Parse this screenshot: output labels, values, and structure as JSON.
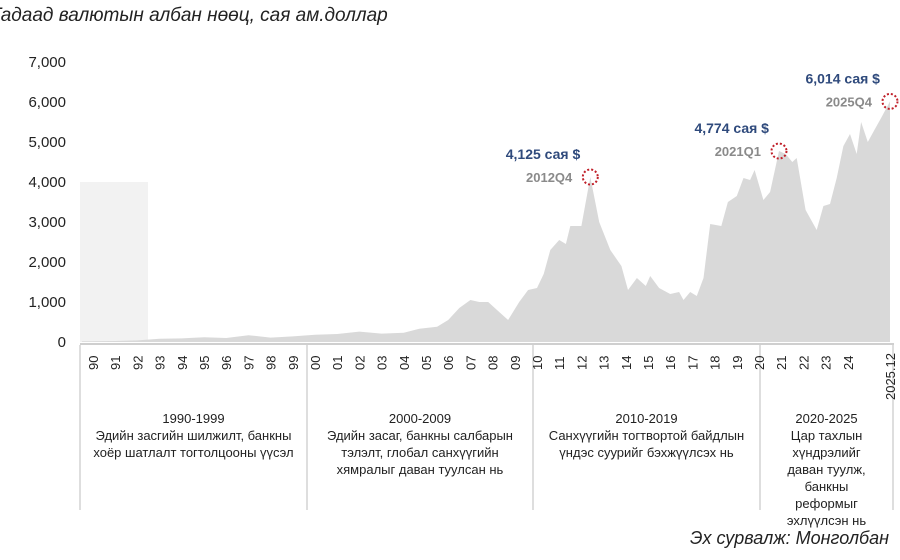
{
  "chart_data": {
    "type": "area",
    "title": "Гадаад валютын албан нөөц, сая ам.доллар",
    "source": "Эх сурвалж: Монголбан",
    "ylim": [
      0,
      7000
    ],
    "y_ticks": [
      "0",
      "1,000",
      "2,000",
      "3,000",
      "4,000",
      "5,000",
      "6,000",
      "7,000"
    ],
    "y_tick_values": [
      0,
      1000,
      2000,
      3000,
      4000,
      5000,
      6000,
      7000
    ],
    "x_ticks": [
      "90",
      "91",
      "92",
      "93",
      "94",
      "95",
      "96",
      "97",
      "98",
      "99",
      "00",
      "01",
      "02",
      "03",
      "04",
      "05",
      "06",
      "07",
      "08",
      "09",
      "10",
      "11",
      "12",
      "13",
      "14",
      "15",
      "16",
      "17",
      "18",
      "19",
      "20",
      "21",
      "22",
      "23",
      "24",
      "2025.12"
    ],
    "x_tick_values": [
      1990,
      1991,
      1992,
      1993,
      1994,
      1995,
      1996,
      1997,
      1998,
      1999,
      2000,
      2001,
      2002,
      2003,
      2004,
      2005,
      2006,
      2007,
      2008,
      2009,
      2010,
      2011,
      2012,
      2013,
      2014,
      2015,
      2016,
      2017,
      2018,
      2019,
      2020,
      2021,
      2022,
      2023,
      2024,
      2025.9
    ],
    "grid": false,
    "fill_color": "#d9d9d9",
    "series": [
      {
        "x": [
          1989.5,
          1990,
          1991,
          1992,
          1993,
          1994,
          1995,
          1996,
          1997,
          1998,
          1999,
          2000,
          2001,
          2002,
          2003,
          2004,
          2004.7,
          2005.5,
          2006,
          2006.5,
          2007,
          2007.4,
          2007.8,
          2008.2,
          2008.7,
          2009.2,
          2009.6,
          2010,
          2010.3,
          2010.6,
          2011,
          2011.3,
          2011.5,
          2012,
          2012.4,
          2012.8,
          2013.3,
          2013.8,
          2014.1,
          2014.5,
          2014.9,
          2015.1,
          2015.5,
          2016,
          2016.4,
          2016.6,
          2016.9,
          2017.2,
          2017.5,
          2017.8,
          2018.3,
          2018.6,
          2019,
          2019.3,
          2019.6,
          2019.8,
          2020.2,
          2020.5,
          2020.9,
          2021.2,
          2021.5,
          2021.7,
          2022.1,
          2022.6,
          2022.9,
          2023.2,
          2023.5,
          2023.8,
          2024.1,
          2024.4,
          2024.6,
          2024.9,
          2025.2,
          2025.5,
          2025.9
        ],
        "y": [
          20,
          20,
          25,
          40,
          80,
          90,
          120,
          100,
          170,
          110,
          140,
          180,
          200,
          260,
          210,
          230,
          330,
          380,
          550,
          850,
          1050,
          1000,
          1000,
          800,
          550,
          1000,
          1300,
          1350,
          1700,
          2300,
          2550,
          2450,
          2900,
          2900,
          4125,
          3000,
          2300,
          1900,
          1300,
          1600,
          1400,
          1650,
          1350,
          1200,
          1250,
          1050,
          1250,
          1150,
          1600,
          2950,
          2900,
          3500,
          3650,
          4100,
          4050,
          4300,
          3550,
          3750,
          4774,
          4700,
          4500,
          4600,
          3300,
          2800,
          3400,
          3450,
          4100,
          4900,
          5200,
          4700,
          5500,
          5000,
          5300,
          5600,
          6014
        ]
      }
    ],
    "annotations": [
      {
        "value": "4,125 сая $",
        "period": "2012Q4",
        "x": 2012.4,
        "y": 4125
      },
      {
        "value": "4,774 сая $",
        "period": "2021Q1",
        "x": 2020.9,
        "y": 4774
      },
      {
        "value": "6,014 сая $",
        "period": "2025Q4",
        "x": 2025.9,
        "y": 6014
      }
    ],
    "highlight_color": "#c0202a",
    "periods": [
      {
        "range": "1990-1999",
        "text": "Эдийн засгийн шилжилт, банкны хоёр шатлалт тогтолцооны үүсэл"
      },
      {
        "range": "2000-2009",
        "text": "Эдийн засаг, банкны салбарын тэлэлт, глобал санхүүгийн хямралыг даван туулсан нь"
      },
      {
        "range": "2010-2019",
        "text": "Санхүүгийн тогтвортой байдлын үндэс суурийг бэхжүүлсэх нь"
      },
      {
        "range": "2020-2025",
        "text": "Цар тахлын хүндрэлийг даван туулж, банкны реформыг эхлүүлсэн нь"
      }
    ]
  }
}
